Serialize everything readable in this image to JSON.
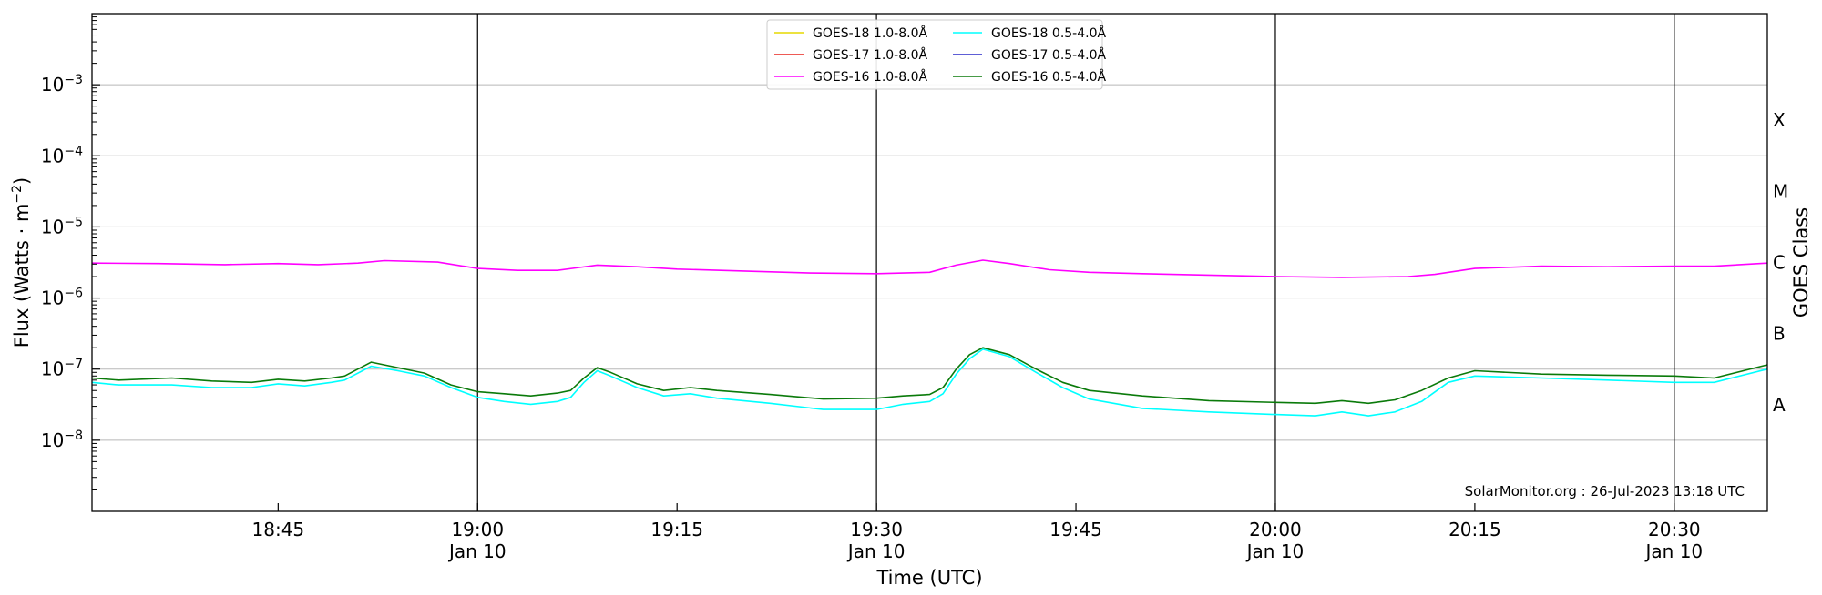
{
  "chart_data": {
    "type": "line",
    "ylabel": "Flux (Watts · m",
    "ylabel_sup": "−2",
    "ylabel_close": ")",
    "xlabel": "Time (UTC)",
    "right_label": "GOES Class",
    "credit": "SolarMonitor.org : 26-Jul-2023 13:18 UTC",
    "y_scale": "log",
    "ylim": [
      1e-09,
      0.01
    ],
    "xlim": [
      "18:31",
      "20:37"
    ],
    "grid": true,
    "legend_placement": "top-center",
    "y_ticks": [
      {
        "value": 1e-08,
        "base": "10",
        "exp": "−8"
      },
      {
        "value": 1e-07,
        "base": "10",
        "exp": "−7"
      },
      {
        "value": 1e-06,
        "base": "10",
        "exp": "−6"
      },
      {
        "value": 1e-05,
        "base": "10",
        "exp": "−5"
      },
      {
        "value": 0.0001,
        "base": "10",
        "exp": "−4"
      },
      {
        "value": 0.001,
        "base": "10",
        "exp": "−3"
      }
    ],
    "x_ticks": [
      {
        "time": "18:45",
        "label": "18:45",
        "date": ""
      },
      {
        "time": "19:00",
        "label": "19:00",
        "date": "Jan 10"
      },
      {
        "time": "19:15",
        "label": "19:15",
        "date": ""
      },
      {
        "time": "19:30",
        "label": "19:30",
        "date": "Jan 10"
      },
      {
        "time": "19:45",
        "label": "19:45",
        "date": ""
      },
      {
        "time": "20:00",
        "label": "20:00",
        "date": "Jan 10"
      },
      {
        "time": "20:15",
        "label": "20:15",
        "date": ""
      },
      {
        "time": "20:30",
        "label": "20:30",
        "date": "Jan 10"
      }
    ],
    "date_lines": [
      "19:00",
      "19:30",
      "20:00",
      "20:30"
    ],
    "goes_classes": [
      {
        "label": "A",
        "value": 3.16e-08
      },
      {
        "label": "B",
        "value": 3.16e-07
      },
      {
        "label": "C",
        "value": 3.16e-06
      },
      {
        "label": "M",
        "value": 3.16e-05
      },
      {
        "label": "X",
        "value": 0.000316
      }
    ],
    "series": [
      {
        "name": "GOES-18 1.0-8.0Å",
        "color": "#e6d800",
        "times": [],
        "values": []
      },
      {
        "name": "GOES-17 1.0-8.0Å",
        "color": "#e8241d",
        "times": [],
        "values": []
      },
      {
        "name": "GOES-16 1.0-8.0Å",
        "color": "#ff00ff",
        "times": [
          "18:31",
          "18:36",
          "18:41",
          "18:45",
          "18:48",
          "18:51",
          "18:53",
          "18:57",
          "19:00",
          "19:03",
          "19:06",
          "19:09",
          "19:12",
          "19:15",
          "19:20",
          "19:25",
          "19:30",
          "19:32",
          "19:34",
          "19:36",
          "19:38",
          "19:40",
          "19:43",
          "19:46",
          "19:50",
          "19:55",
          "20:00",
          "20:05",
          "20:10",
          "20:12",
          "20:15",
          "20:20",
          "20:25",
          "20:30",
          "20:33",
          "20:37"
        ],
        "values": [
          3.1e-06,
          3.05e-06,
          2.95e-06,
          3.05e-06,
          2.95e-06,
          3.1e-06,
          3.35e-06,
          3.2e-06,
          2.6e-06,
          2.45e-06,
          2.45e-06,
          2.9e-06,
          2.75e-06,
          2.55e-06,
          2.4e-06,
          2.25e-06,
          2.2e-06,
          2.25e-06,
          2.3e-06,
          2.9e-06,
          3.4e-06,
          3.05e-06,
          2.5e-06,
          2.3e-06,
          2.2e-06,
          2.1e-06,
          2e-06,
          1.95e-06,
          2e-06,
          2.15e-06,
          2.6e-06,
          2.8e-06,
          2.75e-06,
          2.8e-06,
          2.8e-06,
          3.1e-06
        ]
      },
      {
        "name": "GOES-18 0.5-4.0Å",
        "color": "#00ffff",
        "times": [
          "18:31",
          "18:33",
          "18:37",
          "18:40",
          "18:43",
          "18:45",
          "18:47",
          "18:49",
          "18:50",
          "18:52",
          "18:54",
          "18:56",
          "18:58",
          "19:00",
          "19:02",
          "19:04",
          "19:06",
          "19:07",
          "19:08",
          "19:09",
          "19:10",
          "19:12",
          "19:14",
          "19:16",
          "19:18",
          "19:22",
          "19:26",
          "19:30",
          "19:32",
          "19:34",
          "19:35",
          "19:36",
          "19:37",
          "19:38",
          "19:40",
          "19:42",
          "19:44",
          "19:46",
          "19:50",
          "19:55",
          "20:00",
          "20:03",
          "20:05",
          "20:07",
          "20:09",
          "20:11",
          "20:13",
          "20:15",
          "20:20",
          "20:25",
          "20:30",
          "20:33",
          "20:37"
        ],
        "values": [
          6.5e-08,
          6e-08,
          6e-08,
          5.5e-08,
          5.5e-08,
          6.2e-08,
          5.8e-08,
          6.5e-08,
          7e-08,
          1.1e-07,
          9.5e-08,
          8e-08,
          5.5e-08,
          4e-08,
          3.5e-08,
          3.2e-08,
          3.5e-08,
          4e-08,
          6.5e-08,
          9.5e-08,
          8e-08,
          5.5e-08,
          4.2e-08,
          4.5e-08,
          3.9e-08,
          3.3e-08,
          2.7e-08,
          2.7e-08,
          3.2e-08,
          3.5e-08,
          4.5e-08,
          8.5e-08,
          1.4e-07,
          1.9e-07,
          1.5e-07,
          9e-08,
          5.5e-08,
          3.8e-08,
          2.8e-08,
          2.5e-08,
          2.3e-08,
          2.2e-08,
          2.5e-08,
          2.2e-08,
          2.5e-08,
          3.5e-08,
          6.5e-08,
          8e-08,
          7.5e-08,
          7e-08,
          6.5e-08,
          6.5e-08,
          1e-07
        ]
      },
      {
        "name": "GOES-17 0.5-4.0Å",
        "color": "#2828c8",
        "times": [],
        "values": []
      },
      {
        "name": "GOES-16 0.5-4.0Å",
        "color": "#0a7a0a",
        "times": [
          "18:31",
          "18:33",
          "18:37",
          "18:40",
          "18:43",
          "18:45",
          "18:47",
          "18:49",
          "18:50",
          "18:52",
          "18:54",
          "18:56",
          "18:58",
          "19:00",
          "19:02",
          "19:04",
          "19:06",
          "19:07",
          "19:08",
          "19:09",
          "19:10",
          "19:12",
          "19:14",
          "19:16",
          "19:18",
          "19:22",
          "19:26",
          "19:30",
          "19:32",
          "19:34",
          "19:35",
          "19:36",
          "19:37",
          "19:38",
          "19:40",
          "19:42",
          "19:44",
          "19:46",
          "19:50",
          "19:55",
          "20:00",
          "20:03",
          "20:05",
          "20:07",
          "20:09",
          "20:11",
          "20:13",
          "20:15",
          "20:20",
          "20:25",
          "20:30",
          "20:33",
          "20:37"
        ],
        "values": [
          7.5e-08,
          7e-08,
          7.5e-08,
          6.8e-08,
          6.5e-08,
          7.2e-08,
          6.8e-08,
          7.5e-08,
          8e-08,
          1.25e-07,
          1.05e-07,
          8.8e-08,
          6e-08,
          4.8e-08,
          4.5e-08,
          4.2e-08,
          4.6e-08,
          5e-08,
          7.5e-08,
          1.05e-07,
          9e-08,
          6.2e-08,
          5e-08,
          5.5e-08,
          5e-08,
          4.4e-08,
          3.8e-08,
          3.9e-08,
          4.2e-08,
          4.4e-08,
          5.5e-08,
          1e-07,
          1.6e-07,
          2e-07,
          1.6e-07,
          1e-07,
          6.5e-08,
          5e-08,
          4.2e-08,
          3.6e-08,
          3.4e-08,
          3.3e-08,
          3.6e-08,
          3.3e-08,
          3.7e-08,
          5e-08,
          7.5e-08,
          9.5e-08,
          8.5e-08,
          8.2e-08,
          8e-08,
          7.5e-08,
          1.15e-07
        ]
      }
    ]
  }
}
